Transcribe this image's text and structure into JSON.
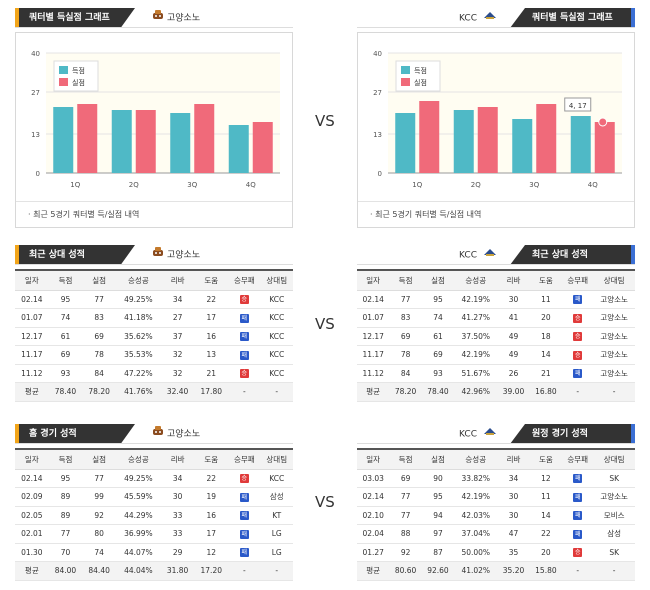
{
  "vs_label": "VS",
  "team_left": "고양소노",
  "team_right": "KCC",
  "quarter_section": {
    "title": "쿼터별 득실점 그래프",
    "note": "최근 5경기 쿼터별 득/실점 내역",
    "legend": [
      "득점",
      "실점"
    ]
  },
  "chart_data": [
    {
      "type": "bar",
      "team": "고양소노",
      "categories": [
        "1Q",
        "2Q",
        "3Q",
        "4Q"
      ],
      "series": [
        {
          "name": "득점",
          "values": [
            22,
            21,
            20,
            16
          ]
        },
        {
          "name": "실점",
          "values": [
            23,
            21,
            23,
            17
          ]
        }
      ],
      "ylim": [
        0,
        40
      ],
      "yticks": [
        "0",
        "13",
        "27",
        "40"
      ],
      "colors": [
        "#4fb9c6",
        "#f06a7a"
      ]
    },
    {
      "type": "bar",
      "team": "KCC",
      "categories": [
        "1Q",
        "2Q",
        "3Q",
        "4Q"
      ],
      "series": [
        {
          "name": "득점",
          "values": [
            20,
            21,
            18,
            19
          ]
        },
        {
          "name": "실점",
          "values": [
            24,
            22,
            23,
            17
          ]
        }
      ],
      "ylim": [
        0,
        40
      ],
      "yticks": [
        "0",
        "13",
        "27",
        "40"
      ],
      "colors": [
        "#4fb9c6",
        "#f06a7a"
      ],
      "tooltip": "4, 17"
    }
  ],
  "headers": [
    "일자",
    "득점",
    "실점",
    "승성공",
    "리바",
    "도움",
    "승무패",
    "상대팀"
  ],
  "recent": {
    "title": "최근 상대 성적",
    "left": {
      "rows": [
        [
          "02.14",
          "95",
          "77",
          "49.25%",
          "34",
          "22",
          "승",
          "KCC"
        ],
        [
          "01.07",
          "74",
          "83",
          "41.18%",
          "27",
          "17",
          "패",
          "KCC"
        ],
        [
          "12.17",
          "61",
          "69",
          "35.62%",
          "37",
          "16",
          "패",
          "KCC"
        ],
        [
          "11.17",
          "69",
          "78",
          "35.53%",
          "32",
          "13",
          "패",
          "KCC"
        ],
        [
          "11.12",
          "93",
          "84",
          "47.22%",
          "32",
          "21",
          "승",
          "KCC"
        ]
      ],
      "avg": [
        "평균",
        "78.40",
        "78.20",
        "41.76%",
        "32.40",
        "17.80",
        "-",
        "-"
      ]
    },
    "right": {
      "rows": [
        [
          "02.14",
          "77",
          "95",
          "42.19%",
          "30",
          "11",
          "패",
          "고양소노"
        ],
        [
          "01.07",
          "83",
          "74",
          "41.27%",
          "41",
          "20",
          "승",
          "고양소노"
        ],
        [
          "12.17",
          "69",
          "61",
          "37.50%",
          "49",
          "18",
          "승",
          "고양소노"
        ],
        [
          "11.17",
          "78",
          "69",
          "42.19%",
          "49",
          "14",
          "승",
          "고양소노"
        ],
        [
          "11.12",
          "84",
          "93",
          "51.67%",
          "26",
          "21",
          "패",
          "고양소노"
        ]
      ],
      "avg": [
        "평균",
        "78.20",
        "78.40",
        "42.96%",
        "39.00",
        "16.80",
        "-",
        "-"
      ]
    }
  },
  "home": {
    "title": "홈 경기 성적",
    "left": {
      "rows": [
        [
          "02.14",
          "95",
          "77",
          "49.25%",
          "34",
          "22",
          "승",
          "KCC"
        ],
        [
          "02.09",
          "89",
          "99",
          "45.59%",
          "30",
          "19",
          "패",
          "삼성"
        ],
        [
          "02.05",
          "89",
          "92",
          "44.29%",
          "33",
          "16",
          "패",
          "KT"
        ],
        [
          "02.01",
          "77",
          "80",
          "36.99%",
          "33",
          "17",
          "패",
          "LG"
        ],
        [
          "01.30",
          "70",
          "74",
          "44.07%",
          "29",
          "12",
          "패",
          "LG"
        ]
      ],
      "avg": [
        "평균",
        "84.00",
        "84.40",
        "44.04%",
        "31.80",
        "17.20",
        "-",
        "-"
      ]
    }
  },
  "away": {
    "title": "원정 경기 성적",
    "right": {
      "rows": [
        [
          "03.03",
          "69",
          "90",
          "33.82%",
          "34",
          "12",
          "패",
          "SK"
        ],
        [
          "02.14",
          "77",
          "95",
          "42.19%",
          "30",
          "11",
          "패",
          "고양소노"
        ],
        [
          "02.10",
          "77",
          "94",
          "42.03%",
          "30",
          "14",
          "패",
          "모비스"
        ],
        [
          "02.04",
          "88",
          "97",
          "37.04%",
          "47",
          "22",
          "패",
          "삼성"
        ],
        [
          "01.27",
          "92",
          "87",
          "50.00%",
          "35",
          "20",
          "승",
          "SK"
        ]
      ],
      "avg": [
        "평균",
        "80.60",
        "92.60",
        "41.02%",
        "35.20",
        "15.80",
        "-",
        "-"
      ]
    }
  }
}
